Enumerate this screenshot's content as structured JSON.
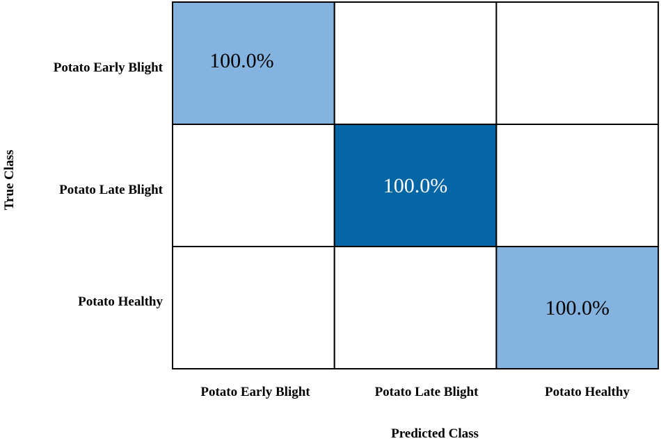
{
  "chart_data": {
    "type": "heatmap",
    "title": "",
    "xlabel": "Predicted Class",
    "ylabel": "True Class",
    "row_labels": [
      "Potato Early Blight",
      "Potato Late Blight",
      "Potato Healthy"
    ],
    "col_labels": [
      "Potato Early Blight",
      "Potato Late Blight",
      "Potato Healthy"
    ],
    "values": [
      [
        100.0,
        0,
        0
      ],
      [
        0,
        100.0,
        0
      ],
      [
        0,
        0,
        100.0
      ]
    ],
    "cell_text": [
      [
        "100.0%",
        "",
        ""
      ],
      [
        "",
        "100.0%",
        ""
      ],
      [
        "",
        "",
        "100.0%"
      ]
    ],
    "cell_colors": [
      [
        "#84b3e0",
        "#ffffff",
        "#ffffff"
      ],
      [
        "#ffffff",
        "#0566a6",
        "#ffffff"
      ],
      [
        "#ffffff",
        "#ffffff",
        "#84b3e0"
      ]
    ],
    "text_colors": [
      [
        "#000000",
        "#000000",
        "#000000"
      ],
      [
        "#000000",
        "#ffffff",
        "#000000"
      ],
      [
        "#000000",
        "#000000",
        "#000000"
      ]
    ],
    "grid": true,
    "legend": "none"
  }
}
